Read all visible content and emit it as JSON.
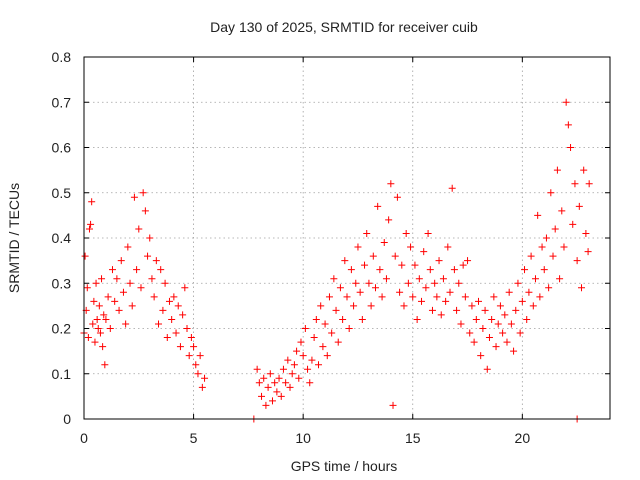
{
  "chart_data": {
    "type": "scatter",
    "title": "Day 130 of 2025, SRMTID for receiver cuib",
    "xlabel": "GPS time / hours",
    "ylabel": "SRMTID / TECUs",
    "xlim": [
      0,
      24
    ],
    "ylim": [
      0,
      0.8
    ],
    "xticks": [
      0,
      5,
      10,
      15,
      20
    ],
    "xtick_labels": [
      "0",
      "5",
      "10",
      "15",
      "20"
    ],
    "yticks": [
      0,
      0.1,
      0.2,
      0.3,
      0.4,
      0.5,
      0.6,
      0.7,
      0.8
    ],
    "ytick_labels": [
      "0",
      "0.1",
      "0.2",
      "0.3",
      "0.4",
      "0.5",
      "0.6",
      "0.7",
      "0.8"
    ],
    "grid": true,
    "marker": "+",
    "color": "#ff0000",
    "series": [
      {
        "name": "SRMTID",
        "points": [
          [
            0.0,
            0.19
          ],
          [
            0.05,
            0.36
          ],
          [
            0.1,
            0.24
          ],
          [
            0.15,
            0.29
          ],
          [
            0.2,
            0.18
          ],
          [
            0.25,
            0.42
          ],
          [
            0.3,
            0.43
          ],
          [
            0.35,
            0.48
          ],
          [
            0.4,
            0.21
          ],
          [
            0.45,
            0.26
          ],
          [
            0.5,
            0.17
          ],
          [
            0.55,
            0.3
          ],
          [
            0.6,
            0.22
          ],
          [
            0.65,
            0.2
          ],
          [
            0.7,
            0.25
          ],
          [
            0.75,
            0.19
          ],
          [
            0.8,
            0.31
          ],
          [
            0.85,
            0.16
          ],
          [
            0.9,
            0.23
          ],
          [
            0.95,
            0.12
          ],
          [
            1.0,
            0.22
          ],
          [
            1.1,
            0.27
          ],
          [
            1.2,
            0.2
          ],
          [
            1.3,
            0.33
          ],
          [
            1.4,
            0.26
          ],
          [
            1.5,
            0.31
          ],
          [
            1.6,
            0.24
          ],
          [
            1.7,
            0.35
          ],
          [
            1.8,
            0.28
          ],
          [
            1.9,
            0.21
          ],
          [
            2.0,
            0.38
          ],
          [
            2.1,
            0.3
          ],
          [
            2.2,
            0.25
          ],
          [
            2.3,
            0.49
          ],
          [
            2.4,
            0.33
          ],
          [
            2.5,
            0.42
          ],
          [
            2.6,
            0.29
          ],
          [
            2.7,
            0.5
          ],
          [
            2.8,
            0.46
          ],
          [
            2.9,
            0.36
          ],
          [
            3.0,
            0.4
          ],
          [
            3.1,
            0.31
          ],
          [
            3.2,
            0.27
          ],
          [
            3.3,
            0.35
          ],
          [
            3.4,
            0.21
          ],
          [
            3.5,
            0.33
          ],
          [
            3.6,
            0.24
          ],
          [
            3.7,
            0.3
          ],
          [
            3.8,
            0.18
          ],
          [
            3.9,
            0.26
          ],
          [
            4.0,
            0.22
          ],
          [
            4.1,
            0.27
          ],
          [
            4.2,
            0.19
          ],
          [
            4.3,
            0.25
          ],
          [
            4.4,
            0.16
          ],
          [
            4.5,
            0.23
          ],
          [
            4.6,
            0.29
          ],
          [
            4.7,
            0.2
          ],
          [
            4.8,
            0.14
          ],
          [
            4.9,
            0.18
          ],
          [
            5.0,
            0.16
          ],
          [
            5.1,
            0.12
          ],
          [
            5.2,
            0.1
          ],
          [
            5.3,
            0.14
          ],
          [
            5.4,
            0.07
          ],
          [
            5.5,
            0.09
          ],
          [
            7.75,
            0.0
          ],
          [
            7.9,
            0.11
          ],
          [
            8.0,
            0.08
          ],
          [
            8.1,
            0.05
          ],
          [
            8.2,
            0.09
          ],
          [
            8.3,
            0.03
          ],
          [
            8.4,
            0.07
          ],
          [
            8.5,
            0.1
          ],
          [
            8.6,
            0.04
          ],
          [
            8.7,
            0.08
          ],
          [
            8.8,
            0.06
          ],
          [
            8.9,
            0.09
          ],
          [
            9.0,
            0.05
          ],
          [
            9.1,
            0.11
          ],
          [
            9.2,
            0.08
          ],
          [
            9.3,
            0.13
          ],
          [
            9.4,
            0.07
          ],
          [
            9.5,
            0.1
          ],
          [
            9.6,
            0.12
          ],
          [
            9.7,
            0.15
          ],
          [
            9.8,
            0.09
          ],
          [
            9.9,
            0.17
          ],
          [
            10.0,
            0.14
          ],
          [
            10.1,
            0.2
          ],
          [
            10.2,
            0.11
          ],
          [
            10.3,
            0.08
          ],
          [
            10.4,
            0.13
          ],
          [
            10.5,
            0.18
          ],
          [
            10.6,
            0.22
          ],
          [
            10.7,
            0.12
          ],
          [
            10.8,
            0.25
          ],
          [
            10.9,
            0.16
          ],
          [
            11.0,
            0.21
          ],
          [
            11.1,
            0.14
          ],
          [
            11.2,
            0.27
          ],
          [
            11.3,
            0.19
          ],
          [
            11.4,
            0.31
          ],
          [
            11.5,
            0.24
          ],
          [
            11.6,
            0.17
          ],
          [
            11.7,
            0.29
          ],
          [
            11.8,
            0.22
          ],
          [
            11.9,
            0.35
          ],
          [
            12.0,
            0.27
          ],
          [
            12.1,
            0.2
          ],
          [
            12.2,
            0.33
          ],
          [
            12.3,
            0.25
          ],
          [
            12.4,
            0.3
          ],
          [
            12.5,
            0.38
          ],
          [
            12.6,
            0.28
          ],
          [
            12.7,
            0.22
          ],
          [
            12.8,
            0.34
          ],
          [
            12.9,
            0.41
          ],
          [
            13.0,
            0.3
          ],
          [
            13.1,
            0.25
          ],
          [
            13.2,
            0.36
          ],
          [
            13.3,
            0.29
          ],
          [
            13.4,
            0.47
          ],
          [
            13.5,
            0.33
          ],
          [
            13.6,
            0.27
          ],
          [
            13.7,
            0.39
          ],
          [
            13.8,
            0.31
          ],
          [
            13.9,
            0.44
          ],
          [
            14.0,
            0.52
          ],
          [
            14.1,
            0.03
          ],
          [
            14.2,
            0.36
          ],
          [
            14.3,
            0.49
          ],
          [
            14.4,
            0.28
          ],
          [
            14.5,
            0.34
          ],
          [
            14.6,
            0.25
          ],
          [
            14.7,
            0.41
          ],
          [
            14.8,
            0.3
          ],
          [
            14.9,
            0.38
          ],
          [
            15.0,
            0.27
          ],
          [
            15.1,
            0.34
          ],
          [
            15.2,
            0.22
          ],
          [
            15.3,
            0.31
          ],
          [
            15.4,
            0.26
          ],
          [
            15.5,
            0.37
          ],
          [
            15.6,
            0.29
          ],
          [
            15.7,
            0.41
          ],
          [
            15.8,
            0.33
          ],
          [
            15.9,
            0.24
          ],
          [
            16.0,
            0.3
          ],
          [
            16.1,
            0.27
          ],
          [
            16.2,
            0.35
          ],
          [
            16.3,
            0.23
          ],
          [
            16.4,
            0.31
          ],
          [
            16.5,
            0.26
          ],
          [
            16.6,
            0.38
          ],
          [
            16.7,
            0.28
          ],
          [
            16.8,
            0.51
          ],
          [
            16.9,
            0.33
          ],
          [
            17.0,
            0.24
          ],
          [
            17.1,
            0.3
          ],
          [
            17.2,
            0.21
          ],
          [
            17.3,
            0.34
          ],
          [
            17.4,
            0.27
          ],
          [
            17.5,
            0.35
          ],
          [
            17.6,
            0.19
          ],
          [
            17.7,
            0.25
          ],
          [
            17.8,
            0.17
          ],
          [
            17.9,
            0.22
          ],
          [
            18.0,
            0.26
          ],
          [
            18.1,
            0.14
          ],
          [
            18.2,
            0.2
          ],
          [
            18.3,
            0.24
          ],
          [
            18.4,
            0.11
          ],
          [
            18.5,
            0.18
          ],
          [
            18.6,
            0.22
          ],
          [
            18.7,
            0.27
          ],
          [
            18.8,
            0.16
          ],
          [
            18.9,
            0.21
          ],
          [
            19.0,
            0.25
          ],
          [
            19.1,
            0.19
          ],
          [
            19.2,
            0.23
          ],
          [
            19.3,
            0.17
          ],
          [
            19.4,
            0.28
          ],
          [
            19.5,
            0.21
          ],
          [
            19.6,
            0.15
          ],
          [
            19.7,
            0.24
          ],
          [
            19.8,
            0.3
          ],
          [
            19.9,
            0.19
          ],
          [
            20.0,
            0.26
          ],
          [
            20.1,
            0.33
          ],
          [
            20.2,
            0.22
          ],
          [
            20.3,
            0.28
          ],
          [
            20.4,
            0.36
          ],
          [
            20.5,
            0.25
          ],
          [
            20.6,
            0.31
          ],
          [
            20.7,
            0.45
          ],
          [
            20.8,
            0.27
          ],
          [
            20.9,
            0.38
          ],
          [
            21.0,
            0.33
          ],
          [
            21.1,
            0.4
          ],
          [
            21.2,
            0.29
          ],
          [
            21.3,
            0.5
          ],
          [
            21.4,
            0.36
          ],
          [
            21.5,
            0.42
          ],
          [
            21.6,
            0.55
          ],
          [
            21.7,
            0.31
          ],
          [
            21.8,
            0.46
          ],
          [
            21.9,
            0.38
          ],
          [
            22.0,
            0.7
          ],
          [
            22.1,
            0.65
          ],
          [
            22.2,
            0.6
          ],
          [
            22.3,
            0.43
          ],
          [
            22.4,
            0.52
          ],
          [
            22.5,
            0.35
          ],
          [
            22.6,
            0.47
          ],
          [
            22.7,
            0.29
          ],
          [
            22.8,
            0.55
          ],
          [
            22.9,
            0.41
          ],
          [
            23.0,
            0.37
          ],
          [
            23.05,
            0.52
          ],
          [
            22.5,
            0.0
          ]
        ]
      }
    ]
  }
}
